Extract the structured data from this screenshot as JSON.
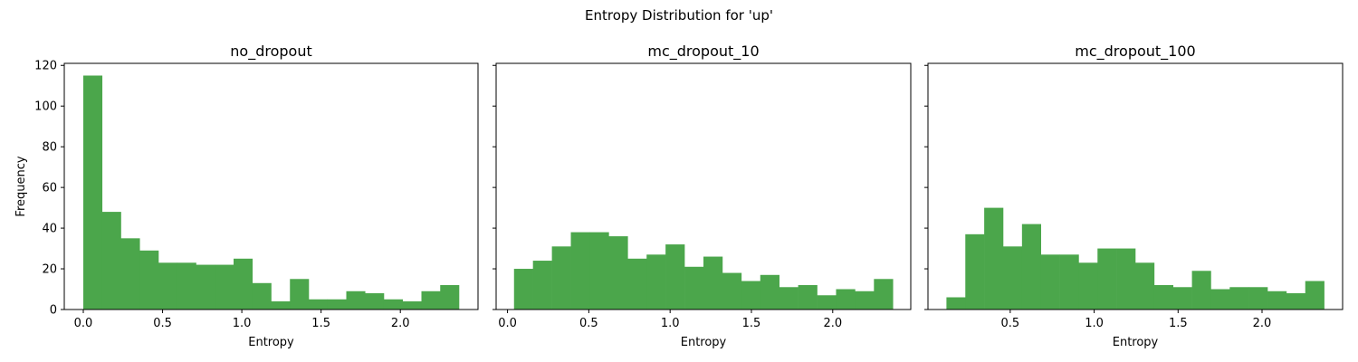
{
  "figure": {
    "title": "Entropy Distribution for 'up'",
    "bar_color": "#4ba64b",
    "ylabel": "Frequency",
    "xlabel": "Entropy",
    "sharey": true
  },
  "chart_data": [
    {
      "type": "bar",
      "title": "no_dropout",
      "xlabel": "Entropy",
      "ylabel": "Frequency",
      "bin_start": 0.0,
      "bin_end": 2.37,
      "values": [
        115,
        48,
        35,
        29,
        23,
        23,
        22,
        22,
        25,
        13,
        4,
        15,
        5,
        5,
        9,
        8,
        5,
        4,
        9,
        12
      ],
      "xlim": [
        -0.12,
        2.49
      ],
      "ylim": [
        0,
        121
      ],
      "xticks": [
        0.0,
        0.5,
        1.0,
        1.5,
        2.0
      ],
      "xtick_labels": [
        "0.0",
        "0.5",
        "1.0",
        "1.5",
        "2.0"
      ],
      "yticks": [
        0,
        20,
        40,
        60,
        80,
        100,
        120
      ],
      "ytick_labels": [
        "0",
        "20",
        "40",
        "60",
        "80",
        "100",
        "120"
      ],
      "grid": false
    },
    {
      "type": "bar",
      "title": "mc_dropout_10",
      "xlabel": "Entropy",
      "bin_start": 0.04,
      "bin_end": 2.37,
      "values": [
        20,
        24,
        31,
        38,
        38,
        36,
        25,
        27,
        32,
        21,
        26,
        18,
        14,
        17,
        11,
        12,
        7,
        10,
        9,
        15
      ],
      "xlim": [
        -0.07,
        2.48
      ],
      "ylim": [
        0,
        121
      ],
      "xticks": [
        0.0,
        0.5,
        1.0,
        1.5,
        2.0
      ],
      "xtick_labels": [
        "0.0",
        "0.5",
        "1.0",
        "1.5",
        "2.0"
      ],
      "yticks": [
        0,
        20,
        40,
        60,
        80,
        100,
        120
      ],
      "ytick_labels": [
        "",
        "",
        "",
        "",
        "",
        "",
        ""
      ],
      "grid": false
    },
    {
      "type": "bar",
      "title": "mc_dropout_100",
      "xlabel": "Entropy",
      "bin_start": 0.12,
      "bin_end": 2.37,
      "values": [
        6,
        37,
        50,
        31,
        42,
        27,
        27,
        23,
        30,
        30,
        23,
        12,
        11,
        19,
        10,
        11,
        11,
        9,
        8,
        14
      ],
      "xlim": [
        0.01,
        2.48
      ],
      "ylim": [
        0,
        121
      ],
      "xticks": [
        0.5,
        1.0,
        1.5,
        2.0
      ],
      "xtick_labels": [
        "0.5",
        "1.0",
        "1.5",
        "2.0"
      ],
      "yticks": [
        0,
        20,
        40,
        60,
        80,
        100,
        120
      ],
      "ytick_labels": [
        "",
        "",
        "",
        "",
        "",
        "",
        ""
      ],
      "grid": false
    }
  ]
}
